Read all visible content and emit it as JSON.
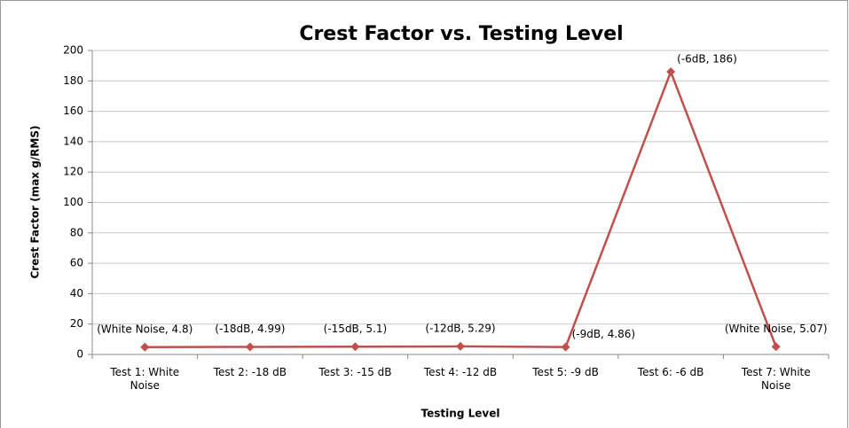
{
  "chart_data": {
    "type": "line",
    "title": "Crest Factor vs. Testing Level",
    "x_label": "Testing Level",
    "y_label": "Crest Factor (max g/RMS)",
    "categories": [
      "Test 1: White Noise",
      "Test 2: -18 dB",
      "Test 3: -15 dB",
      "Test 4: -12 dB",
      "Test 5: -9 dB",
      "Test 6: -6 dB",
      "Test 7: White Noise"
    ],
    "series": [
      {
        "name": "Crest Factor",
        "color": "#c0504d",
        "values": [
          4.8,
          4.99,
          5.1,
          5.29,
          4.86,
          186,
          5.07
        ],
        "value_labels": [
          "(White Noise, 4.8)",
          "(-18dB, 4.99)",
          "(-15dB, 5.1)",
          "(-12dB, 5.29)",
          "(-9dB, 4.86)",
          "(-6dB, 186)",
          "(White Noise, 5.07)"
        ]
      }
    ],
    "ylim": [
      0,
      200
    ],
    "yticks": [
      0,
      20,
      40,
      60,
      80,
      100,
      120,
      140,
      160,
      180,
      200
    ],
    "grid": true
  }
}
